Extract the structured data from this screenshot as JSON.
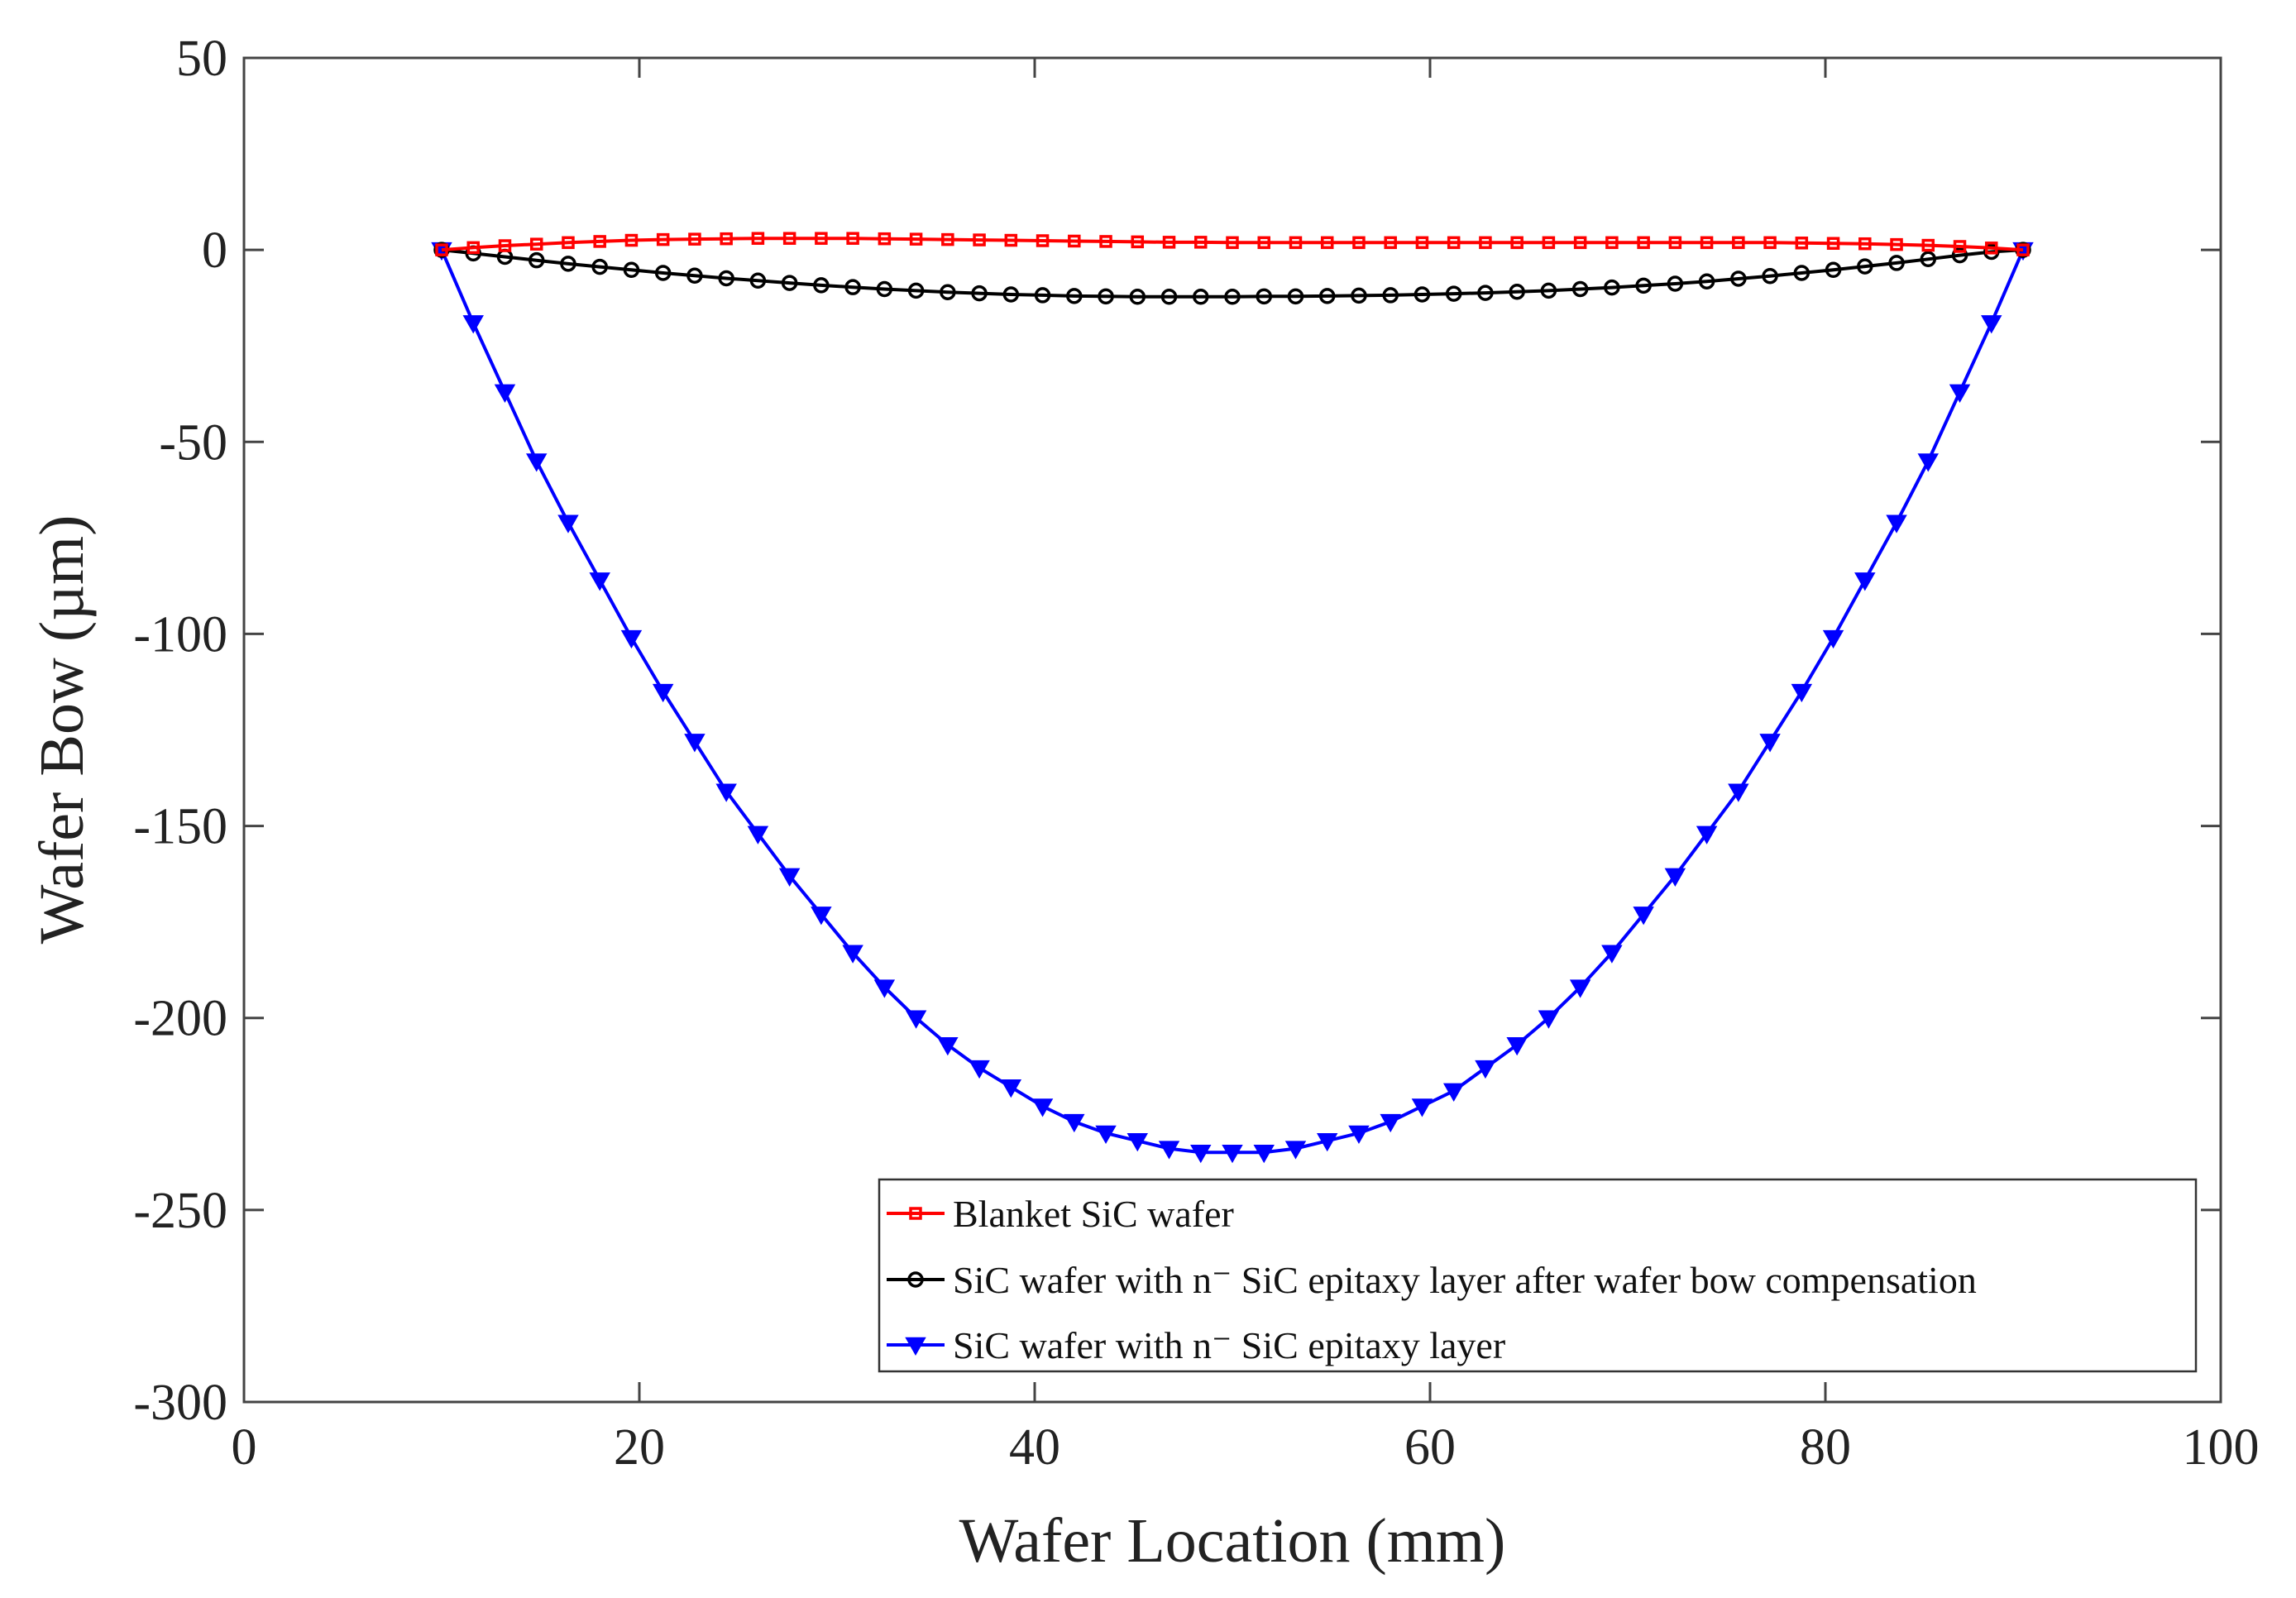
{
  "chart_data": {
    "type": "line",
    "title": "",
    "xlabel": "Wafer Location (mm)",
    "ylabel": "Wafer Bow (µm)",
    "xlim": [
      0,
      100
    ],
    "ylim": [
      -300,
      50
    ],
    "xticks": [
      "0",
      "20",
      "40",
      "60",
      "80",
      "100"
    ],
    "yticks": [
      "50",
      "0",
      "-50",
      "-100",
      "-150",
      "-200",
      "-250",
      "-300"
    ],
    "grid": false,
    "legend_position": "bottom-right",
    "x": [
      10,
      11.6,
      13.2,
      14.8,
      16.4,
      18,
      19.6,
      21.2,
      22.8,
      24.4,
      26,
      27.6,
      29.2,
      30.8,
      32.4,
      34,
      35.6,
      37.2,
      38.8,
      40.4,
      42,
      43.6,
      45.2,
      46.8,
      48.4,
      50,
      51.6,
      53.2,
      54.8,
      56.4,
      58,
      59.6,
      61.2,
      62.8,
      64.4,
      66,
      67.6,
      69.2,
      70.8,
      72.4,
      74,
      75.6,
      77.2,
      78.8,
      80.4,
      82,
      83.6,
      85.2,
      86.8,
      88.4,
      90
    ],
    "series": [
      {
        "name": "Blanket SiC wafer",
        "color": "#ff0000",
        "marker": "square",
        "values": [
          0,
          0.6,
          1.1,
          1.5,
          1.9,
          2.2,
          2.5,
          2.7,
          2.8,
          2.9,
          3.0,
          3.0,
          3.0,
          3.0,
          2.9,
          2.8,
          2.7,
          2.6,
          2.5,
          2.4,
          2.3,
          2.2,
          2.1,
          2.0,
          2.0,
          1.9,
          1.9,
          1.9,
          1.9,
          1.9,
          1.9,
          1.9,
          1.9,
          1.9,
          1.9,
          1.9,
          1.9,
          1.9,
          1.9,
          1.9,
          1.9,
          1.9,
          1.9,
          1.8,
          1.7,
          1.6,
          1.4,
          1.2,
          0.9,
          0.5,
          0
        ]
      },
      {
        "name": "SiC wafer with n⁻ SiC epitaxy layer after wafer bow compensation",
        "color": "#000000",
        "marker": "circle",
        "values": [
          0,
          -0.9,
          -1.8,
          -2.7,
          -3.6,
          -4.4,
          -5.2,
          -6.0,
          -6.7,
          -7.4,
          -8.0,
          -8.6,
          -9.2,
          -9.7,
          -10.2,
          -10.6,
          -11.0,
          -11.3,
          -11.6,
          -11.8,
          -12.0,
          -12.1,
          -12.2,
          -12.2,
          -12.2,
          -12.2,
          -12.1,
          -12.1,
          -12.0,
          -11.9,
          -11.8,
          -11.6,
          -11.4,
          -11.2,
          -10.9,
          -10.6,
          -10.2,
          -9.8,
          -9.3,
          -8.8,
          -8.2,
          -7.5,
          -6.8,
          -6.0,
          -5.2,
          -4.3,
          -3.4,
          -2.4,
          -1.4,
          -0.5,
          0
        ]
      },
      {
        "name": "SiC wafer with n⁻ SiC epitaxy layer",
        "color": "#0000ff",
        "marker": "triangle-down",
        "values": [
          0,
          -19,
          -37,
          -55,
          -71,
          -86,
          -101,
          -115,
          -128,
          -141,
          -152,
          -163,
          -173,
          -183,
          -192,
          -200,
          -207,
          -213,
          -218,
          -223,
          -227,
          -230,
          -232,
          -234,
          -235,
          -235,
          -235,
          -234,
          -232,
          -230,
          -227,
          -223,
          -219,
          -213,
          -207,
          -200,
          -192,
          -183,
          -173,
          -163,
          -152,
          -141,
          -128,
          -115,
          -101,
          -86,
          -71,
          -55,
          -37,
          -19,
          0
        ]
      }
    ]
  }
}
